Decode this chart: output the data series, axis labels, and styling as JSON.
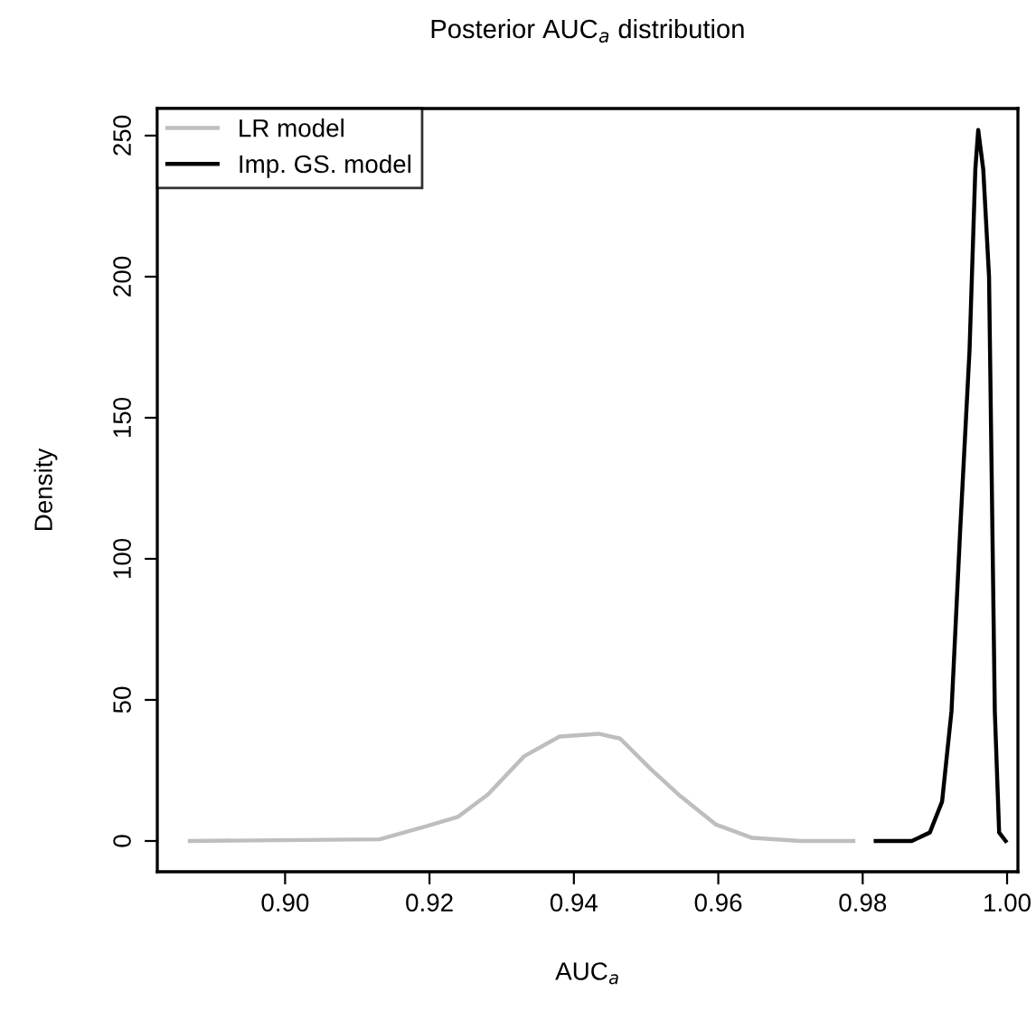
{
  "chart_data": {
    "type": "line",
    "title": "Posterior AUC$_{a}$ distribution",
    "xlabel": "AUC$_{a}$",
    "ylabel": "Density",
    "xlim": [
      0.8823,
      1.0015
    ],
    "ylim": [
      -10.9,
      259.6
    ],
    "xticks": [
      {
        "value": 0.9,
        "label": "0.90"
      },
      {
        "value": 0.92,
        "label": "0.92"
      },
      {
        "value": 0.94,
        "label": "0.94"
      },
      {
        "value": 0.96,
        "label": "0.96"
      },
      {
        "value": 0.98,
        "label": "0.98"
      },
      {
        "value": 1.0,
        "label": "1.00"
      }
    ],
    "yticks": [
      0,
      50,
      100,
      150,
      200,
      250
    ],
    "grid": false,
    "legend": "top left",
    "series": [
      {
        "name": "LR model",
        "color": "#bebebe",
        "x": [
          0.8868,
          0.9131,
          0.9197,
          0.9239,
          0.9281,
          0.9331,
          0.938,
          0.9434,
          0.9464,
          0.9506,
          0.9547,
          0.9597,
          0.9647,
          0.9714,
          0.9787
        ],
        "values": [
          0,
          0.6,
          5.3,
          8.5,
          16.5,
          30,
          37,
          38,
          36.3,
          25.6,
          16,
          5.8,
          1.1,
          0,
          0
        ]
      },
      {
        "name": "Imp. GS. model",
        "color": "#000000",
        "x": [
          0.9818,
          0.9868,
          0.9893,
          0.991,
          0.9923,
          0.9935,
          0.9948,
          0.9956,
          0.996,
          0.9967,
          0.9975,
          0.9983,
          0.9989,
          0.9998
        ],
        "values": [
          0,
          0,
          3,
          14,
          46,
          110,
          174,
          238,
          252,
          238,
          200,
          46,
          3,
          0
        ]
      }
    ]
  }
}
